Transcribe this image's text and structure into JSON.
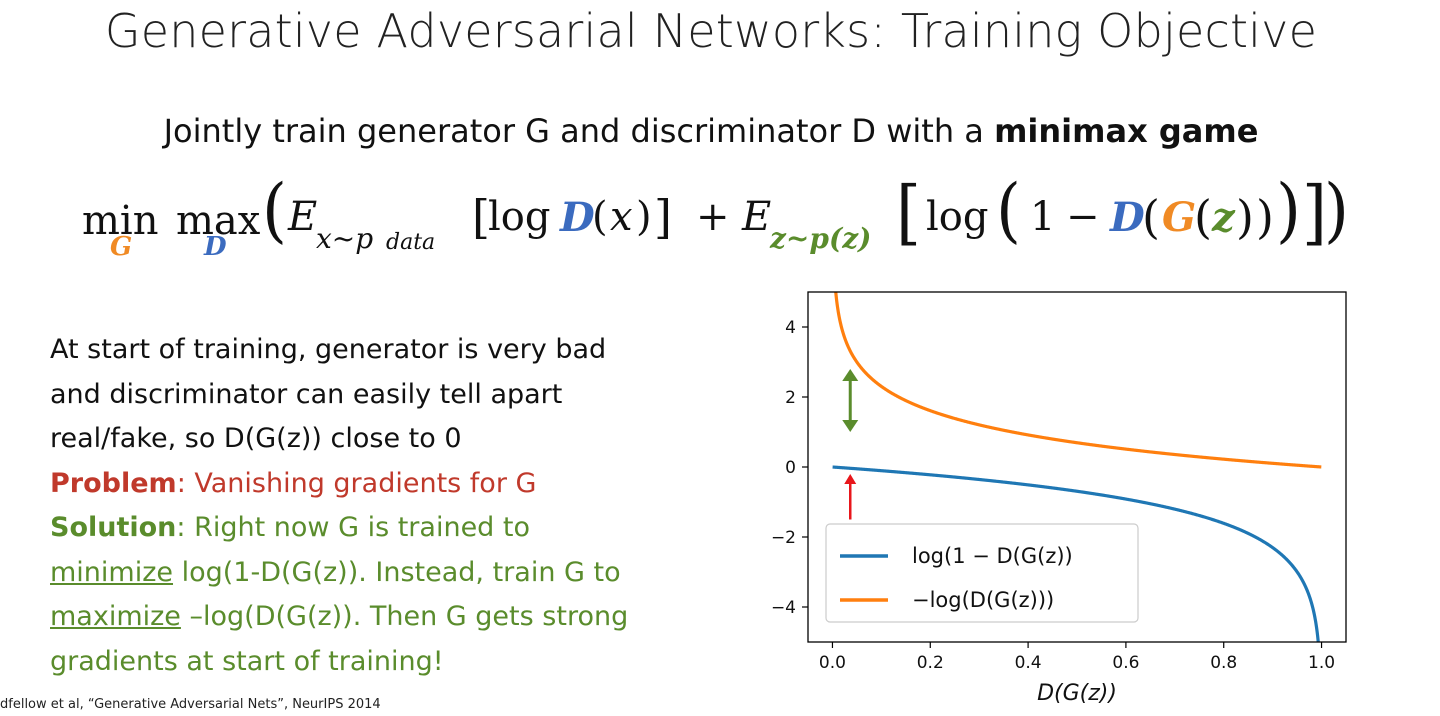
{
  "slide": {
    "title": "Generative Adversarial Networks: Training Objective",
    "subtitle_prefix": "Jointly train generator G and discriminator D with a ",
    "subtitle_bold": "minimax game",
    "citation": "dfellow et al, “Generative Adversarial Nets”, NeurIPS 2014"
  },
  "formula": {
    "min": "min",
    "min_sub": "G",
    "max": "max",
    "max_sub": "D",
    "E1": "E",
    "E1_sub": "x~p",
    "E1_subsub": "data",
    "log1": "log",
    "D1": "D",
    "x": "x",
    "plus": "+",
    "E2": "E",
    "E2_sub": "z~p(z)",
    "log2": "log",
    "one": "1",
    "minus": "−",
    "D2": "D",
    "G": "G",
    "z": "z"
  },
  "text": {
    "line1": "At start of training, generator is very bad",
    "line2": "and discriminator can easily tell apart",
    "line3": "real/fake, so D(G(z)) close to 0",
    "problem_label": "Problem",
    "problem_text": ": Vanishing gradients for G",
    "solution_label": "Solution",
    "solution_text": ": Right now G is trained to",
    "minimize_word": "minimize",
    "line6_rest": " log(1-D(G(z)). Instead, train G to",
    "maximize_word": "maximize",
    "line7_rest": " –log(D(G(z)). Then G gets strong",
    "line8": "gradients at start of training!"
  },
  "chart_data": {
    "type": "line",
    "xlabel": "D(G(z))",
    "ylabel": "",
    "title": "",
    "xlim": [
      -0.05,
      1.05
    ],
    "ylim": [
      -5,
      5
    ],
    "xticks": [
      0.0,
      0.2,
      0.4,
      0.6,
      0.8,
      1.0
    ],
    "xtick_labels": [
      "0.0",
      "0.2",
      "0.4",
      "0.6",
      "0.8",
      "1.0"
    ],
    "yticks": [
      4,
      2,
      0,
      -2,
      -4
    ],
    "ytick_labels": [
      "4",
      "2",
      "0",
      "−2",
      "−4"
    ],
    "series": [
      {
        "name": "log(1 − D(G(z))",
        "color": "#1f77b4",
        "function": "log(1-x)",
        "x": [
          0.0,
          0.1,
          0.2,
          0.3,
          0.4,
          0.5,
          0.6,
          0.7,
          0.8,
          0.9,
          0.95,
          0.99
        ],
        "y": [
          0.0,
          -0.11,
          -0.22,
          -0.36,
          -0.51,
          -0.69,
          -0.92,
          -1.2,
          -1.61,
          -2.3,
          -3.0,
          -4.61
        ]
      },
      {
        "name": "−log(D(G(z)))",
        "color": "#ff7f0e",
        "function": "-log(x)",
        "x": [
          0.01,
          0.05,
          0.1,
          0.2,
          0.3,
          0.4,
          0.5,
          0.6,
          0.7,
          0.8,
          0.9,
          1.0
        ],
        "y": [
          4.61,
          3.0,
          2.3,
          1.61,
          1.2,
          0.92,
          0.69,
          0.51,
          0.36,
          0.22,
          0.11,
          0.0
        ]
      }
    ],
    "legend_position": "lower-left",
    "annotations": [
      {
        "type": "double-arrow",
        "color": "#5a8c2c",
        "x": 0.02,
        "y_from": 2.8,
        "y_to": 1.0
      },
      {
        "type": "arrow",
        "color": "#e8161b",
        "x": 0.02,
        "y_from": -1.5,
        "y_to": -0.2
      }
    ]
  }
}
